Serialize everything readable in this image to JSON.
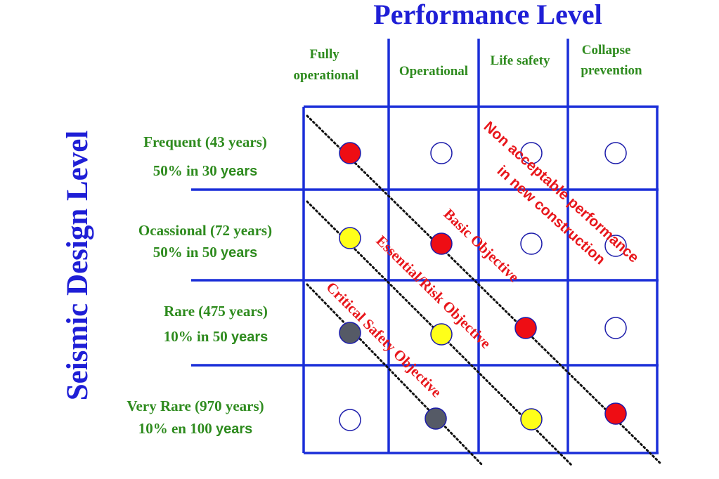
{
  "diagram": {
    "title": "Performance Level",
    "vertical_title": "Seismic Design Level",
    "columns": [
      {
        "line1": "Fully",
        "line2": "operational"
      },
      {
        "line1": "Operational",
        "line2": ""
      },
      {
        "line1": "Life safety",
        "line2": ""
      },
      {
        "line1": "Collapse",
        "line2": "prevention"
      }
    ],
    "rows": [
      {
        "line1": "Frequent (43 years)",
        "line2_num": "50% in 30 ",
        "line2_tail": "years"
      },
      {
        "line1": "Ocassional (72 years)",
        "line2_num": "50% in 50 ",
        "line2_tail": "years"
      },
      {
        "line1": "Rare (475 years)",
        "line2_num": "10% in 50 ",
        "line2_tail": "years"
      },
      {
        "line1": "Very Rare (970 years)",
        "line2_num": "10% en 100 ",
        "line2_tail": "years"
      }
    ],
    "objectives": {
      "basic": "Basic Objective",
      "essential": "Essential/Risk Objective",
      "critical": "Critical Safety Objective",
      "not_acceptable_line1": "Non acceptable performance",
      "not_acceptable_line2": "in new construction"
    },
    "markers": [
      [
        "red",
        "empty",
        "empty",
        "empty"
      ],
      [
        "yellow",
        "red",
        "empty",
        "empty"
      ],
      [
        "gray",
        "yellow",
        "red",
        "empty"
      ],
      [
        "empty",
        "gray",
        "yellow",
        "red"
      ]
    ],
    "colors": {
      "title": "#1f1fd6",
      "grid": "#1a2ed8",
      "header_text": "#2e8b1e",
      "objective_text": "#e8161b",
      "red": "#ee0d14",
      "yellow": "#ffff19",
      "gray": "#555a66",
      "empty_outline": "#1a1aaa"
    }
  }
}
